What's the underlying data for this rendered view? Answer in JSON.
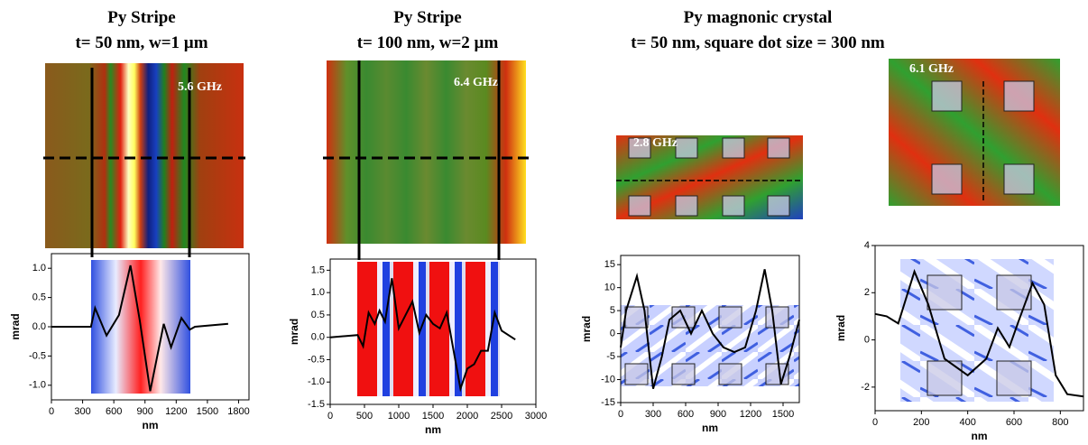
{
  "headings": [
    {
      "lines": [
        "Py Stripe",
        "t= 50 nm, w=1 µm"
      ]
    },
    {
      "lines": [
        "Py Stripe",
        "t= 100 nm, w=2 µm"
      ]
    },
    {
      "lines": [
        "Py magnonic crystal",
        "t= 50 nm, square dot size = 300 nm"
      ]
    }
  ],
  "chart_data": [
    {
      "type": "line",
      "annotation": "5.6  GHz",
      "xlabel": "nm",
      "ylabel": "mrad",
      "color": "#000000",
      "x": [
        0,
        380,
        420,
        530,
        650,
        760,
        850,
        950,
        1080,
        1150,
        1250,
        1330,
        1380,
        1700
      ],
      "values": [
        0,
        0,
        0.32,
        -0.15,
        0.2,
        1.05,
        0.1,
        -1.1,
        0.05,
        -0.35,
        0.15,
        -0.05,
        0,
        0.05
      ],
      "xlim": [
        0,
        1900
      ],
      "ylim": [
        -1.25,
        1.25
      ],
      "xticks": [
        0,
        300,
        600,
        900,
        1200,
        1500,
        1800
      ],
      "yticks": [
        {
          "value": -1,
          "label": "-1.0"
        },
        -0.5,
        {
          "value": 0,
          "label": "0.0"
        },
        0.5,
        {
          "value": 1,
          "label": "1.0"
        }
      ]
    },
    {
      "type": "line",
      "annotation": "6.4 GHz",
      "xlabel": "nm",
      "ylabel": "mrad",
      "color": "#000000",
      "x": [
        0,
        400,
        480,
        560,
        650,
        720,
        800,
        900,
        1000,
        1100,
        1200,
        1300,
        1400,
        1500,
        1600,
        1700,
        1800,
        1900,
        2000,
        2100,
        2200,
        2300,
        2400,
        2500,
        2700
      ],
      "values": [
        0,
        0.05,
        -0.2,
        0.55,
        0.3,
        0.6,
        0.35,
        1.32,
        0.2,
        0.5,
        0.8,
        0.1,
        0.5,
        0.3,
        0.2,
        0.55,
        -0.3,
        -1.15,
        -0.7,
        -0.6,
        -0.3,
        -0.3,
        0.55,
        0.15,
        -0.05
      ],
      "xlim": [
        0,
        3000
      ],
      "ylim": [
        -1.5,
        1.75
      ],
      "xticks": [
        0,
        500,
        1000,
        1500,
        2000,
        2500,
        3000
      ],
      "yticks": [
        -1.5,
        {
          "value": -1,
          "label": "-1.0"
        },
        -0.5,
        {
          "value": 0,
          "label": "0.0"
        },
        0.5,
        {
          "value": 1,
          "label": "1.0"
        },
        1.5
      ]
    },
    {
      "type": "line",
      "annotation": "2.8 GHz",
      "xlabel": "nm",
      "ylabel": "mrad",
      "color": "#000000",
      "x": [
        0,
        50,
        150,
        220,
        300,
        380,
        450,
        550,
        650,
        750,
        850,
        950,
        1050,
        1150,
        1250,
        1330,
        1400,
        1480,
        1560,
        1650
      ],
      "values": [
        -3,
        5,
        12.5,
        5,
        -12,
        -5,
        3,
        5,
        0,
        5,
        0,
        -3,
        -4,
        -3,
        5,
        14,
        5,
        -11,
        -5,
        3
      ],
      "xlim": [
        0,
        1650
      ],
      "ylim": [
        -15,
        17
      ],
      "xticks": [
        0,
        300,
        600,
        900,
        1200,
        1500
      ],
      "yticks": [
        -15,
        -10,
        -5,
        0,
        5,
        10,
        15
      ]
    },
    {
      "type": "line",
      "annotation": "6.1 GHz",
      "xlabel": "nm",
      "ylabel": "mrad",
      "color": "#000000",
      "x": [
        0,
        50,
        100,
        170,
        230,
        300,
        400,
        480,
        530,
        580,
        620,
        680,
        730,
        780,
        830,
        900
      ],
      "values": [
        1.1,
        1.0,
        0.7,
        2.9,
        1.5,
        -0.8,
        -1.5,
        -0.8,
        0.5,
        -0.3,
        0.8,
        2.4,
        1.5,
        -1.5,
        -2.3,
        -2.4
      ],
      "xlim": [
        0,
        900
      ],
      "ylim": [
        -3,
        4
      ],
      "xticks": [
        0,
        200,
        400,
        600,
        800
      ],
      "yticks": [
        -2,
        0,
        2,
        4
      ]
    }
  ]
}
